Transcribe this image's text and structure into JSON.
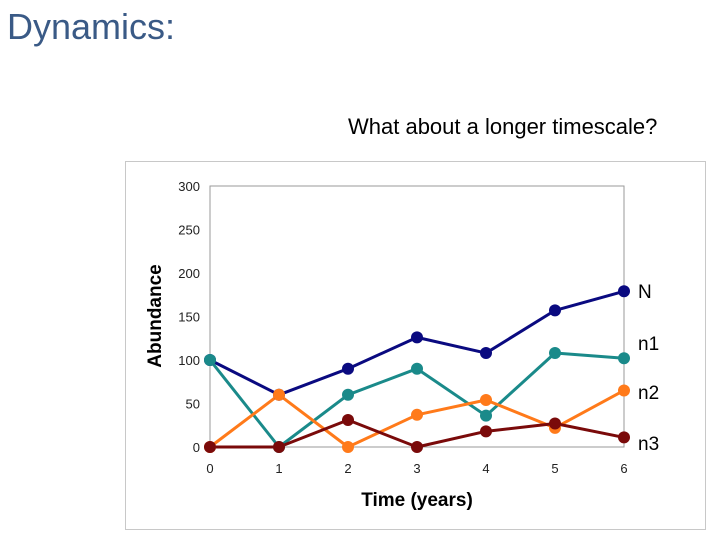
{
  "slide": {
    "title": "Dynamics:",
    "subtitle": "What about a longer timescale?"
  },
  "chart_data": {
    "type": "line",
    "xlabel": "Time (years)",
    "ylabel": "Abundance",
    "x": [
      0,
      1,
      2,
      3,
      4,
      5,
      6
    ],
    "xlim": [
      0,
      6
    ],
    "ylim": [
      0,
      300
    ],
    "yticks": [
      0,
      50,
      100,
      150,
      200,
      250,
      300
    ],
    "xticks": [
      0,
      1,
      2,
      3,
      4,
      5,
      6
    ],
    "grid": false,
    "legend": "right, labels at series ends",
    "series": [
      {
        "name": "N",
        "color": "#0a0a80",
        "values": [
          100,
          60,
          90,
          126,
          108,
          157,
          179
        ]
      },
      {
        "name": "n1",
        "color": "#1a8a8a",
        "values": [
          100,
          0,
          60,
          90,
          36,
          108,
          102
        ]
      },
      {
        "name": "n2",
        "color": "#ff7a1a",
        "values": [
          0,
          60,
          0,
          37,
          54,
          22,
          65
        ]
      },
      {
        "name": "n3",
        "color": "#7a0a0a",
        "values": [
          0,
          0,
          31,
          0,
          18,
          27,
          11
        ]
      }
    ]
  }
}
